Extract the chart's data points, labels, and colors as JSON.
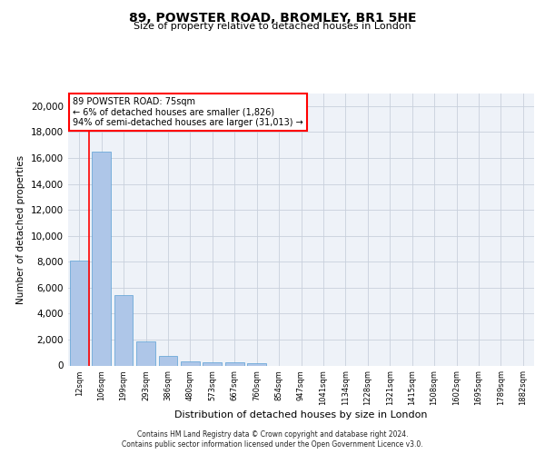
{
  "title": "89, POWSTER ROAD, BROMLEY, BR1 5HE",
  "subtitle": "Size of property relative to detached houses in London",
  "xlabel": "Distribution of detached houses by size in London",
  "ylabel": "Number of detached properties",
  "categories": [
    "12sqm",
    "106sqm",
    "199sqm",
    "293sqm",
    "386sqm",
    "480sqm",
    "573sqm",
    "667sqm",
    "760sqm",
    "854sqm",
    "947sqm",
    "1041sqm",
    "1134sqm",
    "1228sqm",
    "1321sqm",
    "1415sqm",
    "1508sqm",
    "1602sqm",
    "1695sqm",
    "1789sqm",
    "1882sqm"
  ],
  "values": [
    8100,
    16500,
    5400,
    1850,
    750,
    330,
    260,
    230,
    200,
    0,
    0,
    0,
    0,
    0,
    0,
    0,
    0,
    0,
    0,
    0,
    0
  ],
  "bar_color": "#aec6e8",
  "bar_edge_color": "#5a9fd4",
  "annotation_box_text": "89 POWSTER ROAD: 75sqm\n← 6% of detached houses are smaller (1,826)\n94% of semi-detached houses are larger (31,013) →",
  "ylim": [
    0,
    21000
  ],
  "yticks": [
    0,
    2000,
    4000,
    6000,
    8000,
    10000,
    12000,
    14000,
    16000,
    18000,
    20000
  ],
  "grid_color": "#c8d0dc",
  "background_color": "#eef2f8",
  "footer_line1": "Contains HM Land Registry data © Crown copyright and database right 2024.",
  "footer_line2": "Contains public sector information licensed under the Open Government Licence v3.0."
}
